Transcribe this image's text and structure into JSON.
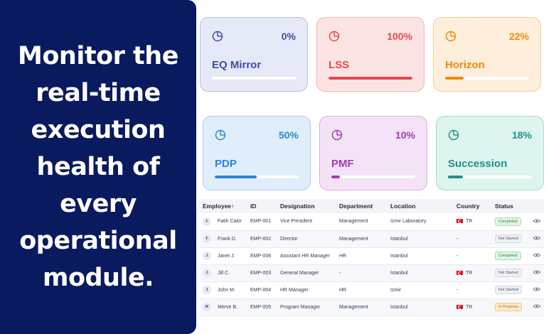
{
  "hero": {
    "text": "Monitor the\nreal-time\nexecution\nhealth of\nevery\noperational\nmodule."
  },
  "modules": [
    {
      "name": "EQ Mirror",
      "percent_label": "0%",
      "progress": 0,
      "color": "#3f4fa8",
      "bg": "#e6e9f7",
      "border": "#b7bfe6",
      "track": "#ffffff",
      "icon": "pie-chart-icon"
    },
    {
      "name": "LSS",
      "percent_label": "100%",
      "progress": 100,
      "color": "#e8484f",
      "bg": "#fde4e4",
      "border": "#f5b3b5",
      "track": "#ffffff",
      "icon": "pie-chart-icon"
    },
    {
      "name": "Horizon",
      "percent_label": "22%",
      "progress": 22,
      "color": "#f08a0a",
      "bg": "#feeedc",
      "border": "#f8cc9a",
      "track": "#ffffff",
      "icon": "pie-chart-icon"
    },
    {
      "name": "PDP",
      "percent_label": "50%",
      "progress": 50,
      "color": "#2b86d9",
      "bg": "#e0eefb",
      "border": "#a9cdf0",
      "track": "#ffffff",
      "icon": "pie-chart-icon"
    },
    {
      "name": "PMF",
      "percent_label": "10%",
      "progress": 10,
      "color": "#a23bb5",
      "bg": "#f4e3f7",
      "border": "#d9aee2",
      "track": "#ffffff",
      "icon": "pie-chart-icon"
    },
    {
      "name": "Succession",
      "percent_label": "18%",
      "progress": 18,
      "color": "#1f9383",
      "bg": "#def4ef",
      "border": "#a3dccf",
      "track": "#ffffff",
      "icon": "pie-chart-icon"
    }
  ],
  "table": {
    "headers": {
      "employee": "Employee",
      "sort_arrow": "↑",
      "id": "ID",
      "designation": "Designation",
      "department": "Department",
      "location": "Location",
      "country": "Country",
      "status": "Status"
    },
    "rows": [
      {
        "initial": "F",
        "name": "Fatih Cakir",
        "id": "EMP-001",
        "designation": "Vice President",
        "department": "Management",
        "location": "Izmir Laboratory",
        "country": "TR",
        "has_flag": true,
        "status": "Completed",
        "status_type": "completed"
      },
      {
        "initial": "F",
        "name": "Frank D.",
        "id": "EMP-002",
        "designation": "Director",
        "department": "Management",
        "location": "Istanbul",
        "country": "-",
        "has_flag": false,
        "status": "Not Started",
        "status_type": "notstarted"
      },
      {
        "initial": "J",
        "name": "Janet J.",
        "id": "EMP-008",
        "designation": "Assistant HR Manager",
        "department": "HR",
        "location": "Istanbul",
        "country": "-",
        "has_flag": false,
        "status": "Completed",
        "status_type": "completed"
      },
      {
        "initial": "J",
        "name": "Jill C.",
        "id": "EMP-003",
        "designation": "General Manager",
        "department": "-",
        "location": "Istanbul",
        "country": "TR",
        "has_flag": true,
        "status": "Not Started",
        "status_type": "notstarted"
      },
      {
        "initial": "J",
        "name": "John M.",
        "id": "EMP-004",
        "designation": "HR Manager",
        "department": "HR",
        "location": "Izmir",
        "country": "-",
        "has_flag": false,
        "status": "Not Started",
        "status_type": "notstarted"
      },
      {
        "initial": "M",
        "name": "Merve B.",
        "id": "EMP-005",
        "designation": "Program Manager",
        "department": "Management",
        "location": "Istanbul",
        "country": "TR",
        "has_flag": true,
        "status": "In Progress",
        "status_type": "inprogress"
      }
    ]
  }
}
